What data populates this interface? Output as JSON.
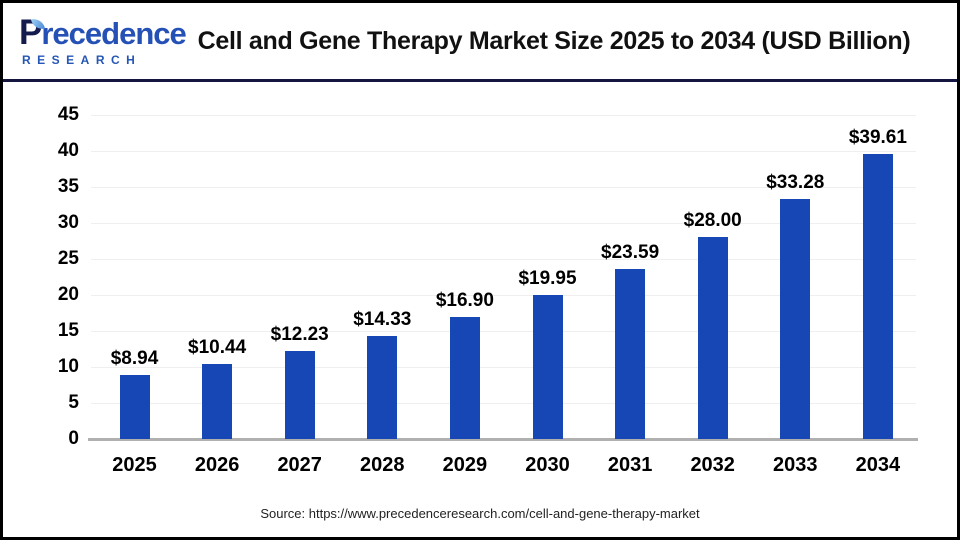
{
  "header": {
    "logo": {
      "initial": "P",
      "rest": "recedence",
      "subtitle": "RESEARCH"
    },
    "title": "Cell and Gene Therapy Market Size 2025 to 2034 (USD Billion)"
  },
  "chart_data": {
    "type": "bar",
    "title": "Cell and Gene Therapy Market Size 2025 to 2034 (USD Billion)",
    "categories": [
      "2025",
      "2026",
      "2027",
      "2028",
      "2029",
      "2030",
      "2031",
      "2032",
      "2033",
      "2034"
    ],
    "values": [
      8.94,
      10.44,
      12.23,
      14.33,
      16.9,
      19.95,
      23.59,
      28.0,
      33.28,
      39.61
    ],
    "value_labels": [
      "$8.94",
      "$10.44",
      "$12.23",
      "$14.33",
      "$16.90",
      "$19.95",
      "$23.59",
      "$28.00",
      "$33.28",
      "$39.61"
    ],
    "xlabel": "",
    "ylabel": "",
    "ylim": [
      0,
      45
    ],
    "yticks": [
      0,
      5,
      10,
      15,
      20,
      25,
      30,
      35,
      40,
      45
    ],
    "grid": true,
    "legend": "none",
    "bar_color": "#1747B4"
  },
  "footer": {
    "source": "Source: https://www.precedenceresearch.com/cell-and-gene-therapy-market"
  },
  "colors": {
    "bar": "#1747B4",
    "header_separator": "#14163F",
    "axis_line": "#B0B0B0",
    "gridline": "#EFEFEF",
    "logo_navy": "#141B4D",
    "logo_blue": "#2550B5",
    "title_text": "#111111",
    "source_text": "#222222"
  }
}
